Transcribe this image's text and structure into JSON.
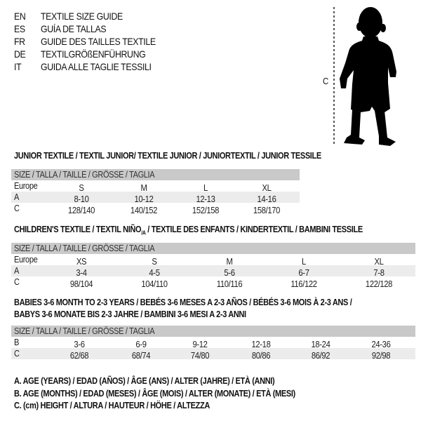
{
  "header": {
    "languages": [
      {
        "code": "EN",
        "title": "TEXTILE SIZE GUIDE"
      },
      {
        "code": "ES",
        "title": "GUÍA DE TALLAS"
      },
      {
        "code": "FR",
        "title": "GUIDE DES TAILLES TEXTILE"
      },
      {
        "code": "DE",
        "title": "TEXTILGRÖßENFÜHRUNG"
      },
      {
        "code": "IT",
        "title": "GUIDA ALLE TAGLIE TESSILI"
      }
    ]
  },
  "figure": {
    "measure_label": "C",
    "icon": "baby-silhouette-icon"
  },
  "size_header": "SIZE / TALLA / TAILLE / GRÖSSE / TAGLIA",
  "junior": {
    "title": "JUNIOR TEXTILE / TEXTIL JUNIOR/ TEXTILE JUNIOR / JUNIORTEXTIL / JUNIOR TESSILE",
    "rows": [
      {
        "label": "Europe",
        "values": [
          "S",
          "M",
          "L",
          "XL"
        ]
      },
      {
        "label": "A",
        "values": [
          "8-10",
          "10-12",
          "12-13",
          "14-16"
        ]
      },
      {
        "label": "C",
        "values": [
          "128/140",
          "140/152",
          "152/158",
          "158/170"
        ]
      }
    ]
  },
  "children": {
    "title_pre": "CHILDREN'S TEXTILE / TEXTIL NIÑO",
    "title_sub": "/A",
    "title_post": " / TEXTILE DES ENFANTS / KINDERTEXTIL / BAMBINI TESSILE",
    "rows": [
      {
        "label": "Europe",
        "values": [
          "XS",
          "S",
          "M",
          "L",
          "XL"
        ]
      },
      {
        "label": "A",
        "values": [
          "3-4",
          "4-5",
          "5-6",
          "6-7",
          "7-8"
        ]
      },
      {
        "label": "C",
        "values": [
          "98/104",
          "104/110",
          "110/116",
          "116/122",
          "122/128"
        ]
      }
    ]
  },
  "babies": {
    "title_line1": "BABIES 3-6 MONTH TO 2-3 YEARS / BEBÉS 3-6 MESES A 2-3 AÑOS / BÉBÉS 3-6 MOIS À 2-3 ANS /",
    "title_line2": "BABYS 3-6 MONATE BIS 2-3 JAHRE / BAMBINI 3-6 MESI A 2-3 ANNI",
    "rows": [
      {
        "label": "B",
        "values": [
          "3-6",
          "6-9",
          "9-12",
          "12-18",
          "18-24",
          "24-36"
        ]
      },
      {
        "label": "C",
        "values": [
          "62/68",
          "68/74",
          "74/80",
          "80/86",
          "86/92",
          "92/98"
        ]
      }
    ]
  },
  "legend": [
    "A. AGE (YEARS) / EDAD (AÑOS) / ÂGE (ANS) / ALTER (JAHRE) / ETÀ (ANNI)",
    "B. AGE (MONTHS) / EDAD (MESES) / ÂGE (MOIS) / ALTER (MONATE) / ETÀ (MESI)",
    "C. (cm) HEIGHT / ALTURA / HAUTEUR / HÖHE / ALTEZZA"
  ]
}
